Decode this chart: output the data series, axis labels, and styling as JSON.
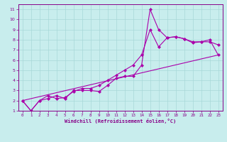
{
  "xlabel": "Windchill (Refroidissement éolien,°C)",
  "bg_color": "#c8eded",
  "grid_color": "#a8d8d8",
  "line_color": "#aa00aa",
  "spine_color": "#880088",
  "xlim": [
    -0.5,
    23.5
  ],
  "ylim": [
    1,
    11.5
  ],
  "xticks": [
    0,
    1,
    2,
    3,
    4,
    5,
    6,
    7,
    8,
    9,
    10,
    11,
    12,
    13,
    14,
    15,
    16,
    17,
    18,
    19,
    20,
    21,
    22,
    23
  ],
  "yticks": [
    1,
    2,
    3,
    4,
    5,
    6,
    7,
    8,
    9,
    10,
    11
  ],
  "line1_x": [
    0,
    1,
    2,
    3,
    4,
    5,
    6,
    7,
    8,
    9,
    10,
    11,
    12,
    13,
    14,
    15,
    16,
    17,
    18,
    19,
    20,
    21,
    22,
    23
  ],
  "line1_y": [
    2.0,
    1.0,
    2.0,
    2.2,
    2.5,
    2.2,
    3.0,
    3.0,
    3.0,
    2.9,
    3.5,
    4.2,
    4.4,
    4.4,
    5.5,
    11.0,
    9.0,
    8.2,
    8.3,
    8.1,
    7.7,
    7.8,
    7.8,
    7.5
  ],
  "line2_x": [
    0,
    1,
    2,
    3,
    4,
    5,
    6,
    7,
    8,
    9,
    10,
    11,
    12,
    13,
    14,
    15,
    16,
    17,
    18,
    19,
    20,
    21,
    22,
    23
  ],
  "line2_y": [
    2.0,
    1.0,
    2.0,
    2.5,
    2.2,
    2.3,
    2.9,
    3.2,
    3.2,
    3.5,
    4.0,
    4.5,
    5.0,
    5.5,
    6.5,
    9.0,
    7.3,
    8.2,
    8.3,
    8.1,
    7.8,
    7.8,
    8.0,
    6.5
  ],
  "line3_x": [
    0,
    23
  ],
  "line3_y": [
    2.0,
    6.5
  ]
}
